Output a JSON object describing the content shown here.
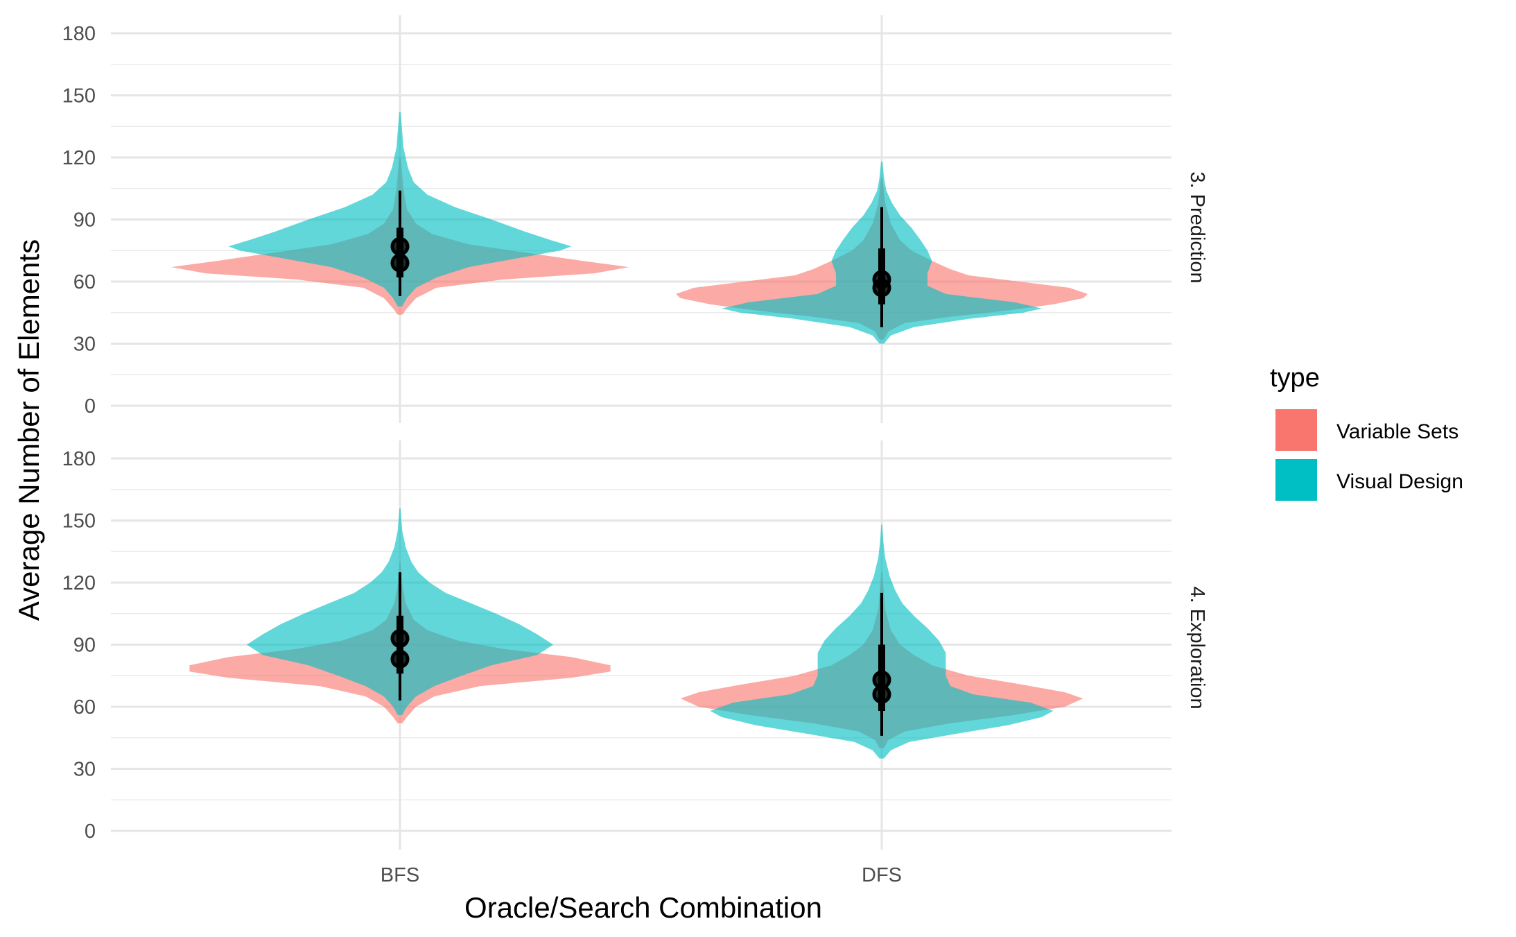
{
  "chart_data": {
    "type": "violin",
    "xlabel": "Oracle/Search Combination",
    "ylabel": "Average Number of Elements",
    "categories": [
      "BFS",
      "DFS"
    ],
    "ylim": [
      0,
      180
    ],
    "y_ticks": [
      0,
      30,
      60,
      90,
      120,
      150,
      180
    ],
    "grid": true,
    "legend": {
      "title": "type",
      "position": "right",
      "entries": [
        {
          "name": "Variable Sets",
          "color": "#F8766D"
        },
        {
          "name": "Visual Design",
          "color": "#00BFC4"
        }
      ]
    },
    "panels": [
      {
        "label": "3. Prediction",
        "groups": [
          {
            "category": "BFS",
            "type": "Variable Sets",
            "range": [
              44,
              120
            ],
            "mode": 67,
            "median": 69,
            "interval": [
              62,
              80
            ],
            "whisker": [
              53,
              98
            ],
            "profile": [
              [
                44,
                0.01
              ],
              [
                47,
                0.03
              ],
              [
                52,
                0.07
              ],
              [
                57,
                0.16
              ],
              [
                61,
                0.45
              ],
              [
                64,
                0.85
              ],
              [
                67,
                1.0
              ],
              [
                70,
                0.8
              ],
              [
                74,
                0.55
              ],
              [
                78,
                0.3
              ],
              [
                83,
                0.14
              ],
              [
                88,
                0.07
              ],
              [
                95,
                0.03
              ],
              [
                105,
                0.015
              ],
              [
                120,
                0.003
              ]
            ]
          },
          {
            "category": "BFS",
            "type": "Visual Design",
            "range": [
              48,
              142
            ],
            "mode": 77,
            "median": 77,
            "interval": [
              69,
              86
            ],
            "whisker": [
              55,
              104
            ],
            "profile": [
              [
                48,
                0.01
              ],
              [
                52,
                0.03
              ],
              [
                57,
                0.07
              ],
              [
                62,
                0.16
              ],
              [
                67,
                0.3
              ],
              [
                72,
                0.55
              ],
              [
                75,
                0.7
              ],
              [
                77,
                0.75
              ],
              [
                80,
                0.66
              ],
              [
                84,
                0.55
              ],
              [
                90,
                0.4
              ],
              [
                96,
                0.24
              ],
              [
                102,
                0.12
              ],
              [
                108,
                0.06
              ],
              [
                115,
                0.035
              ],
              [
                125,
                0.015
              ],
              [
                142,
                0.003
              ]
            ]
          },
          {
            "category": "DFS",
            "type": "Variable Sets",
            "range": [
              32,
              110
            ],
            "mode": 54,
            "median": 57,
            "interval": [
              49,
              70
            ],
            "whisker": [
              38,
              92
            ],
            "profile": [
              [
                32,
                0.01
              ],
              [
                36,
                0.03
              ],
              [
                40,
                0.1
              ],
              [
                43,
                0.3
              ],
              [
                46,
                0.55
              ],
              [
                49,
                0.75
              ],
              [
                52,
                0.88
              ],
              [
                54,
                0.9
              ],
              [
                57,
                0.82
              ],
              [
                60,
                0.6
              ],
              [
                63,
                0.38
              ],
              [
                66,
                0.3
              ],
              [
                70,
                0.22
              ],
              [
                75,
                0.13
              ],
              [
                80,
                0.08
              ],
              [
                88,
                0.04
              ],
              [
                98,
                0.015
              ],
              [
                110,
                0.003
              ]
            ]
          },
          {
            "category": "DFS",
            "type": "Visual Design",
            "range": [
              30,
              118
            ],
            "mode": 47,
            "median": 61,
            "interval": [
              51,
              76
            ],
            "whisker": [
              38,
              96
            ],
            "profile": [
              [
                30,
                0.01
              ],
              [
                34,
                0.04
              ],
              [
                38,
                0.14
              ],
              [
                42,
                0.38
              ],
              [
                45,
                0.62
              ],
              [
                47,
                0.7
              ],
              [
                50,
                0.58
              ],
              [
                54,
                0.28
              ],
              [
                58,
                0.2
              ],
              [
                64,
                0.2
              ],
              [
                70,
                0.22
              ],
              [
                75,
                0.2
              ],
              [
                80,
                0.17
              ],
              [
                86,
                0.13
              ],
              [
                92,
                0.08
              ],
              [
                98,
                0.045
              ],
              [
                104,
                0.02
              ],
              [
                110,
                0.01
              ],
              [
                118,
                0.003
              ]
            ]
          }
        ]
      },
      {
        "label": "4. Exploration",
        "groups": [
          {
            "category": "BFS",
            "type": "Variable Sets",
            "range": [
              52,
              130
            ],
            "mode": 79,
            "median": 83,
            "interval": [
              76,
              95
            ],
            "whisker": [
              64,
              110
            ],
            "profile": [
              [
                52,
                0.01
              ],
              [
                55,
                0.03
              ],
              [
                60,
                0.07
              ],
              [
                65,
                0.15
              ],
              [
                70,
                0.35
              ],
              [
                74,
                0.75
              ],
              [
                77,
                0.92
              ],
              [
                80,
                0.92
              ],
              [
                84,
                0.75
              ],
              [
                88,
                0.45
              ],
              [
                92,
                0.25
              ],
              [
                97,
                0.12
              ],
              [
                102,
                0.06
              ],
              [
                110,
                0.025
              ],
              [
                120,
                0.008
              ],
              [
                130,
                0.002
              ]
            ]
          },
          {
            "category": "BFS",
            "type": "Visual Design",
            "range": [
              56,
              156
            ],
            "mode": 90,
            "median": 93,
            "interval": [
              82,
              104
            ],
            "whisker": [
              63,
              125
            ],
            "profile": [
              [
                56,
                0.01
              ],
              [
                60,
                0.03
              ],
              [
                65,
                0.07
              ],
              [
                70,
                0.15
              ],
              [
                75,
                0.27
              ],
              [
                80,
                0.4
              ],
              [
                85,
                0.6
              ],
              [
                90,
                0.67
              ],
              [
                95,
                0.6
              ],
              [
                100,
                0.52
              ],
              [
                105,
                0.42
              ],
              [
                110,
                0.31
              ],
              [
                115,
                0.2
              ],
              [
                120,
                0.13
              ],
              [
                125,
                0.08
              ],
              [
                130,
                0.05
              ],
              [
                137,
                0.025
              ],
              [
                145,
                0.01
              ],
              [
                156,
                0.002
              ]
            ]
          },
          {
            "category": "DFS",
            "type": "Variable Sets",
            "range": [
              40,
              125
            ],
            "mode": 64,
            "median": 66,
            "interval": [
              58,
              80
            ],
            "whisker": [
              46,
              100
            ],
            "profile": [
              [
                40,
                0.01
              ],
              [
                44,
                0.03
              ],
              [
                48,
                0.1
              ],
              [
                52,
                0.3
              ],
              [
                56,
                0.58
              ],
              [
                60,
                0.8
              ],
              [
                64,
                0.88
              ],
              [
                67,
                0.8
              ],
              [
                71,
                0.6
              ],
              [
                75,
                0.38
              ],
              [
                80,
                0.22
              ],
              [
                85,
                0.14
              ],
              [
                90,
                0.08
              ],
              [
                97,
                0.04
              ],
              [
                107,
                0.015
              ],
              [
                125,
                0.002
              ]
            ]
          },
          {
            "category": "DFS",
            "type": "Visual Design",
            "range": [
              35,
              148
            ],
            "mode": 58,
            "median": 73,
            "interval": [
              60,
              90
            ],
            "whisker": [
              46,
              115
            ],
            "profile": [
              [
                35,
                0.01
              ],
              [
                39,
                0.04
              ],
              [
                43,
                0.12
              ],
              [
                47,
                0.33
              ],
              [
                51,
                0.55
              ],
              [
                55,
                0.7
              ],
              [
                58,
                0.75
              ],
              [
                62,
                0.65
              ],
              [
                66,
                0.4
              ],
              [
                70,
                0.3
              ],
              [
                75,
                0.28
              ],
              [
                80,
                0.28
              ],
              [
                86,
                0.28
              ],
              [
                92,
                0.25
              ],
              [
                98,
                0.2
              ],
              [
                104,
                0.14
              ],
              [
                110,
                0.09
              ],
              [
                116,
                0.06
              ],
              [
                123,
                0.035
              ],
              [
                132,
                0.015
              ],
              [
                140,
                0.007
              ],
              [
                148,
                0.002
              ]
            ]
          }
        ]
      }
    ]
  }
}
